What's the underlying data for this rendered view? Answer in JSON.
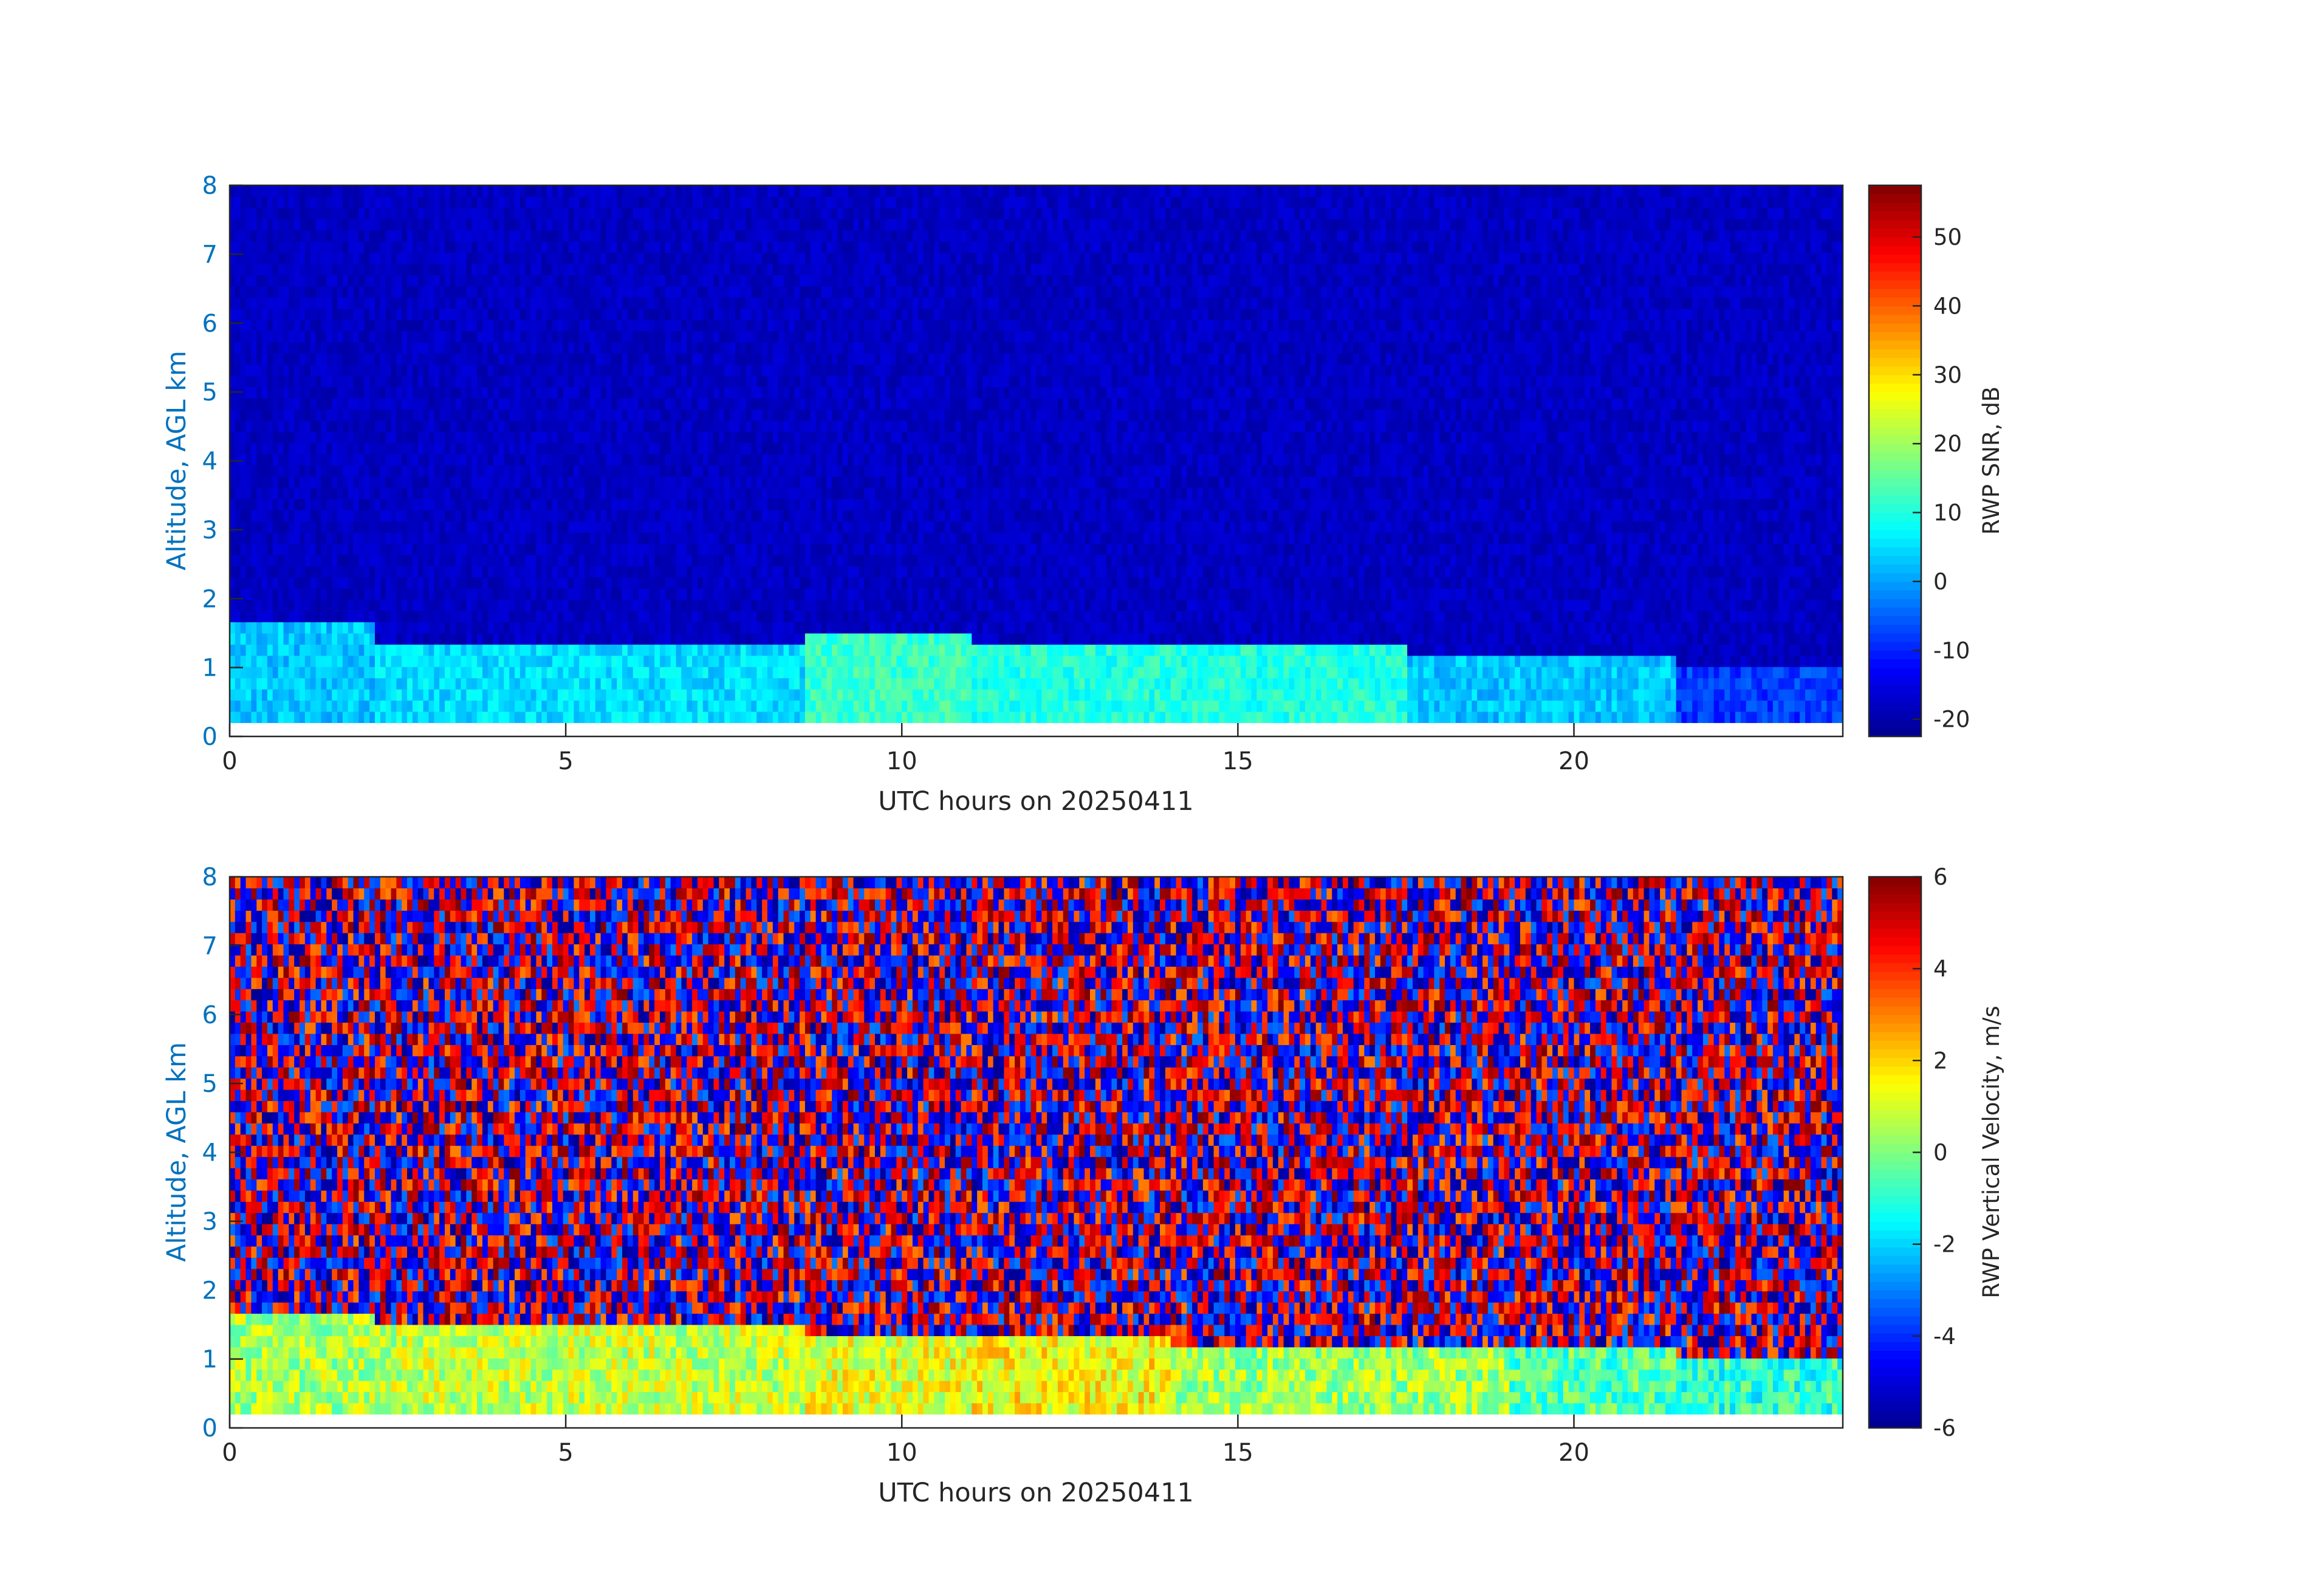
{
  "colors": {
    "axis_label": "#0072bd",
    "tick_text": "#262626",
    "frame": "#262626",
    "colormap": [
      "#00008f",
      "#0000ff",
      "#0080ff",
      "#00ffff",
      "#80ff80",
      "#ffff00",
      "#ff8000",
      "#ff0000",
      "#800000"
    ]
  },
  "chart_data": [
    {
      "type": "heatmap",
      "xlabel": "UTC hours on 20250411",
      "ylabel": "Altitude, AGL km",
      "colorbar_label": "RWP SNR, dB",
      "xlim": [
        0,
        24
      ],
      "ylim": [
        0,
        8
      ],
      "xticks": [
        0,
        5,
        10,
        15,
        20
      ],
      "yticks": [
        0,
        1,
        2,
        3,
        4,
        5,
        6,
        7,
        8
      ],
      "clim": [
        -22.5,
        57.5
      ],
      "cticks": [
        -20,
        -10,
        0,
        10,
        20,
        30,
        40,
        50
      ],
      "data_start_altitude_km": 0.2,
      "background_value": -18,
      "layers": [
        {
          "x0": 0,
          "x1": 2.1,
          "y1": 1.6,
          "value": 3
        },
        {
          "x0": 2.1,
          "x1": 8.5,
          "y1": 1.3,
          "value": 5
        },
        {
          "x0": 8.5,
          "x1": 11.0,
          "y1": 1.5,
          "value": 12
        },
        {
          "x0": 11.0,
          "x1": 17.5,
          "y1": 1.25,
          "value": 10
        },
        {
          "x0": 17.5,
          "x1": 21.5,
          "y1": 1.1,
          "value": 3
        },
        {
          "x0": 21.5,
          "x1": 24,
          "y1": 0.9,
          "value": -8
        }
      ]
    },
    {
      "type": "heatmap",
      "xlabel": "UTC hours on 20250411",
      "ylabel": "Altitude, AGL km",
      "colorbar_label": "RWP Vertical Velocity, m/s",
      "xlim": [
        0,
        24
      ],
      "ylim": [
        0,
        8
      ],
      "xticks": [
        0,
        5,
        10,
        15,
        20
      ],
      "yticks": [
        0,
        1,
        2,
        3,
        4,
        5,
        6,
        7,
        8
      ],
      "clim": [
        -6,
        6
      ],
      "cticks": [
        -6,
        -4,
        -2,
        0,
        2,
        4,
        6
      ],
      "data_start_altitude_km": 0.2,
      "layers": [
        {
          "x0": 0,
          "x1": 2.1,
          "y1": 1.6,
          "value": 0.5
        },
        {
          "x0": 2.1,
          "x1": 8.5,
          "y1": 1.35,
          "value": 0.8
        },
        {
          "x0": 8.5,
          "x1": 11.0,
          "y1": 1.2,
          "value": 1.2
        },
        {
          "x0": 11.0,
          "x1": 14.0,
          "y1": 1.2,
          "value": 1.5
        },
        {
          "x0": 14.0,
          "x1": 19.0,
          "y1": 1.1,
          "value": 0.4
        },
        {
          "x0": 19.0,
          "x1": 21.5,
          "y1": 1.1,
          "value": -0.5
        },
        {
          "x0": 21.5,
          "x1": 24,
          "y1": 0.9,
          "value": -1.0
        }
      ]
    }
  ]
}
